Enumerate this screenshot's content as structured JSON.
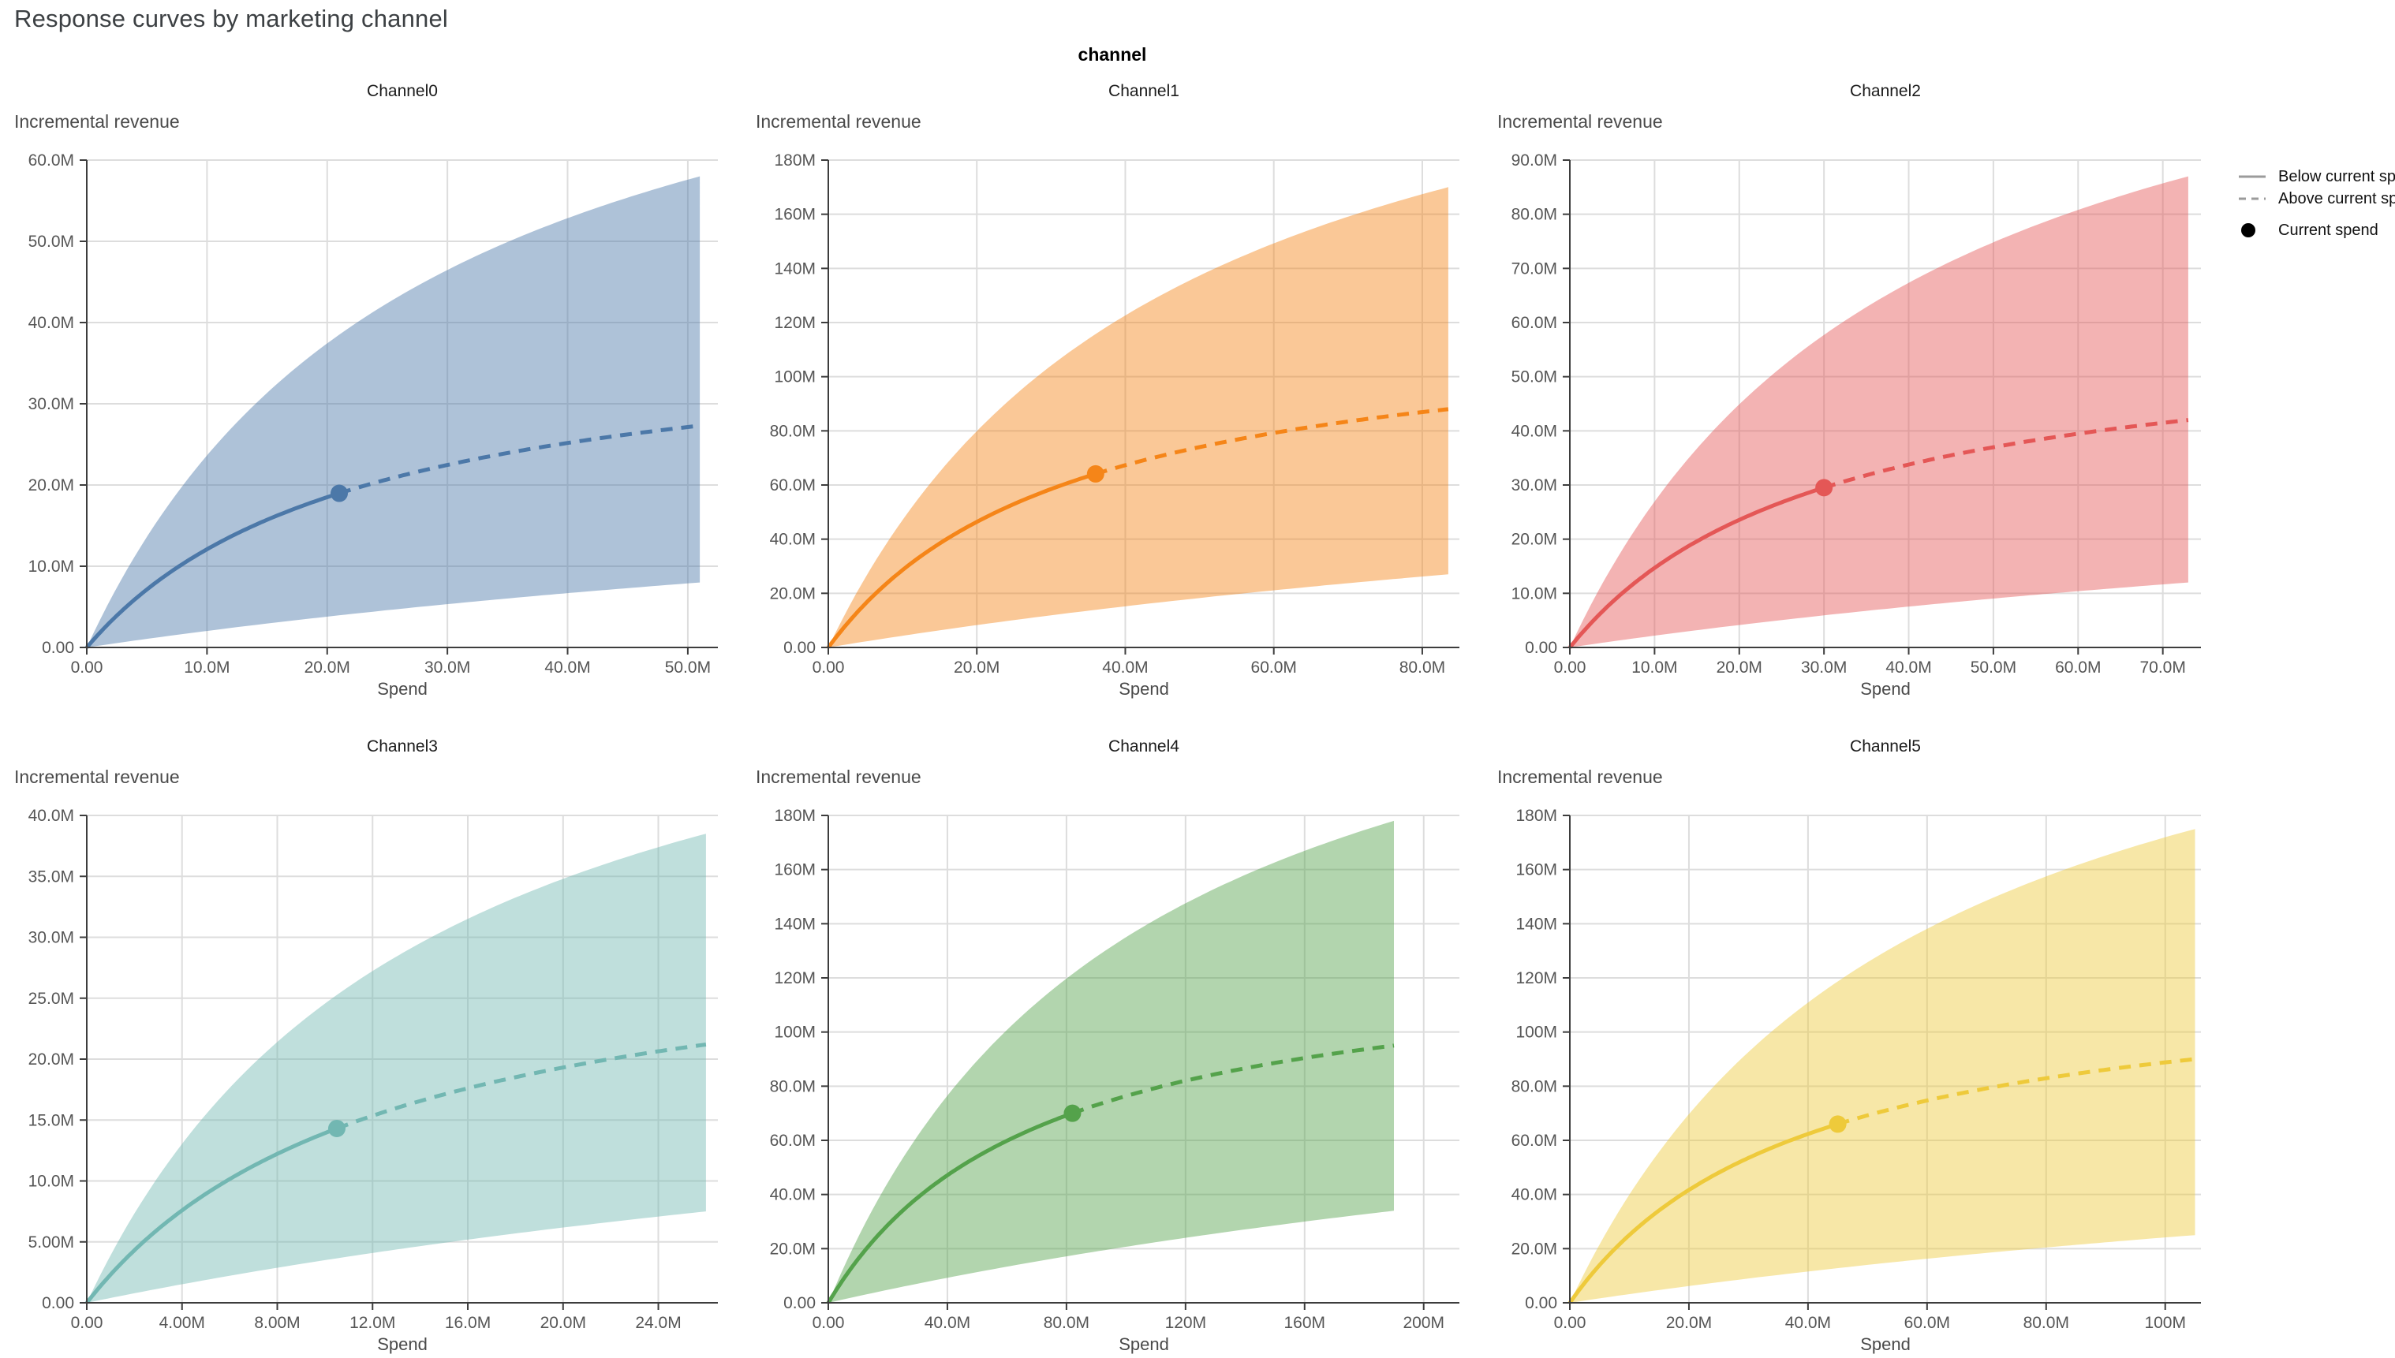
{
  "header": {
    "title": "Response curves by marketing channel"
  },
  "facet": {
    "title": "channel"
  },
  "axis": {
    "x_label": "Spend",
    "y_label": "Incremental revenue"
  },
  "legend": {
    "items": [
      {
        "label": "Below current spend",
        "swatch": "solid-line-icon"
      },
      {
        "label": "Above current spend",
        "swatch": "dashed-line-icon"
      },
      {
        "label": "Current spend",
        "swatch": "dot-icon"
      }
    ],
    "line_color": "#9b9b9b",
    "dot_color": "#000000"
  },
  "style": {
    "grid_color": "#dddddd",
    "axis_color": "#3d3d3d",
    "tick_label_color": "#565656",
    "title_color": "#1a1a1a",
    "axis_title_color": "#4a4a4a",
    "band_opacity": 0.45,
    "page_title_color": "#3c4043"
  },
  "chart_data": [
    {
      "type": "line",
      "title": "Channel0",
      "color": "#4c78a8",
      "xlabel": "Spend",
      "ylabel": "Incremental revenue",
      "units": "millions",
      "x_domain": [
        0,
        52.5
      ],
      "y_domain": [
        0,
        60
      ],
      "x_ticks": {
        "values": [
          0,
          10,
          20,
          30,
          40,
          50
        ],
        "labels": [
          "0.00",
          "10.0M",
          "20.0M",
          "30.0M",
          "40.0M",
          "50.0M"
        ]
      },
      "y_ticks": {
        "values": [
          0,
          10,
          20,
          30,
          40,
          50,
          60
        ],
        "labels": [
          "0.00",
          "10.0M",
          "20.0M",
          "30.0M",
          "40.0M",
          "50.0M",
          "60.0M"
        ]
      },
      "current_spend": {
        "spend_m": 21,
        "incremental_revenue_m": 19
      },
      "curve": {
        "max_spend_m": 51,
        "mean_at_max_m": 27.3,
        "k_mean_m": 22.6,
        "upper_at_max_m": 58,
        "k_upper_m": 28,
        "lower_at_max_m": 8,
        "k_lower_m": 128
      }
    },
    {
      "type": "line",
      "title": "Channel1",
      "color": "#f58518",
      "xlabel": "Spend",
      "ylabel": "Incremental revenue",
      "units": "millions",
      "x_domain": [
        0,
        85
      ],
      "y_domain": [
        0,
        180
      ],
      "x_ticks": {
        "values": [
          0,
          20,
          40,
          60,
          80
        ],
        "labels": [
          "0.00",
          "20.0M",
          "40.0M",
          "60.0M",
          "80.0M"
        ]
      },
      "y_ticks": {
        "values": [
          0,
          20,
          40,
          60,
          80,
          100,
          120,
          140,
          160,
          180
        ],
        "labels": [
          "0.00",
          "20.0M",
          "40.0M",
          "60.0M",
          "80.0M",
          "100M",
          "120M",
          "140M",
          "160M",
          "180M"
        ]
      },
      "current_spend": {
        "spend_m": 36,
        "incremental_revenue_m": 64
      },
      "curve": {
        "max_spend_m": 83.5,
        "mean_at_max_m": 88,
        "k_mean_m": 32.9,
        "upper_at_max_m": 170,
        "k_upper_m": 46,
        "lower_at_max_m": 27,
        "k_lower_m": 209
      }
    },
    {
      "type": "line",
      "title": "Channel2",
      "color": "#e45756",
      "xlabel": "Spend",
      "ylabel": "Incremental revenue",
      "units": "millions",
      "x_domain": [
        0,
        74.5
      ],
      "y_domain": [
        0,
        90
      ],
      "x_ticks": {
        "values": [
          0,
          10,
          20,
          30,
          40,
          50,
          60,
          70
        ],
        "labels": [
          "0.00",
          "10.0M",
          "20.0M",
          "30.0M",
          "40.0M",
          "50.0M",
          "60.0M",
          "70.0M"
        ]
      },
      "y_ticks": {
        "values": [
          0,
          10,
          20,
          30,
          40,
          50,
          60,
          70,
          80,
          90
        ],
        "labels": [
          "0.00",
          "10.0M",
          "20.0M",
          "30.0M",
          "40.0M",
          "50.0M",
          "60.0M",
          "70.0M",
          "80.0M",
          "90.0M"
        ]
      },
      "current_spend": {
        "spend_m": 30,
        "incremental_revenue_m": 29.5
      },
      "curve": {
        "max_spend_m": 73,
        "mean_at_max_m": 42,
        "k_mean_m": 30.6,
        "upper_at_max_m": 87,
        "k_upper_m": 40,
        "lower_at_max_m": 12,
        "k_lower_m": 183
      }
    },
    {
      "type": "line",
      "title": "Channel3",
      "color": "#72b7b2",
      "xlabel": "Spend",
      "ylabel": "Incremental revenue",
      "units": "millions",
      "x_domain": [
        0,
        26.5
      ],
      "y_domain": [
        0,
        40
      ],
      "x_ticks": {
        "values": [
          0,
          4,
          8,
          12,
          16,
          20,
          24
        ],
        "labels": [
          "0.00",
          "4.00M",
          "8.00M",
          "12.0M",
          "16.0M",
          "20.0M",
          "24.0M"
        ]
      },
      "y_ticks": {
        "values": [
          0,
          5,
          10,
          15,
          20,
          25,
          30,
          35,
          40
        ],
        "labels": [
          "0.00",
          "5.00M",
          "10.0M",
          "15.0M",
          "20.0M",
          "25.0M",
          "30.0M",
          "35.0M",
          "40.0M"
        ]
      },
      "current_spend": {
        "spend_m": 10.5,
        "incremental_revenue_m": 14.3
      },
      "curve": {
        "max_spend_m": 26,
        "mean_at_max_m": 21.2,
        "k_mean_m": 12.6,
        "upper_at_max_m": 38.5,
        "k_upper_m": 14.3,
        "lower_at_max_m": 7.5,
        "k_lower_m": 65
      }
    },
    {
      "type": "line",
      "title": "Channel4",
      "color": "#54a24b",
      "xlabel": "Spend",
      "ylabel": "Incremental revenue",
      "units": "millions",
      "x_domain": [
        0,
        212
      ],
      "y_domain": [
        0,
        180
      ],
      "x_ticks": {
        "values": [
          0,
          40,
          80,
          120,
          160,
          200
        ],
        "labels": [
          "0.00",
          "40.0M",
          "80.0M",
          "120M",
          "160M",
          "200M"
        ]
      },
      "y_ticks": {
        "values": [
          0,
          20,
          40,
          60,
          80,
          100,
          120,
          140,
          160,
          180
        ],
        "labels": [
          "0.00",
          "20.0M",
          "40.0M",
          "60.0M",
          "80.0M",
          "100M",
          "120M",
          "140M",
          "160M",
          "180M"
        ]
      },
      "current_spend": {
        "spend_m": 82,
        "incremental_revenue_m": 70
      },
      "curve": {
        "max_spend_m": 190,
        "mean_at_max_m": 95,
        "k_mean_m": 70.7,
        "upper_at_max_m": 178,
        "k_upper_m": 104,
        "lower_at_max_m": 34,
        "k_lower_m": 475
      }
    },
    {
      "type": "line",
      "title": "Channel5",
      "color": "#eeca3b",
      "xlabel": "Spend",
      "ylabel": "Incremental revenue",
      "units": "millions",
      "x_domain": [
        0,
        106
      ],
      "y_domain": [
        0,
        180
      ],
      "x_ticks": {
        "values": [
          0,
          20,
          40,
          60,
          80,
          100
        ],
        "labels": [
          "0.00",
          "20.0M",
          "40.0M",
          "60.0M",
          "80.0M",
          "100M"
        ]
      },
      "y_ticks": {
        "values": [
          0,
          20,
          40,
          60,
          80,
          100,
          120,
          140,
          160,
          180
        ],
        "labels": [
          "0.00",
          "20.0M",
          "40.0M",
          "60.0M",
          "80.0M",
          "100M",
          "120M",
          "140M",
          "160M",
          "180M"
        ]
      },
      "current_spend": {
        "spend_m": 45,
        "incremental_revenue_m": 66
      },
      "curve": {
        "max_spend_m": 105,
        "mean_at_max_m": 90,
        "k_mean_m": 39.4,
        "upper_at_max_m": 175,
        "k_upper_m": 58,
        "lower_at_max_m": 25,
        "k_lower_m": 263
      }
    }
  ]
}
